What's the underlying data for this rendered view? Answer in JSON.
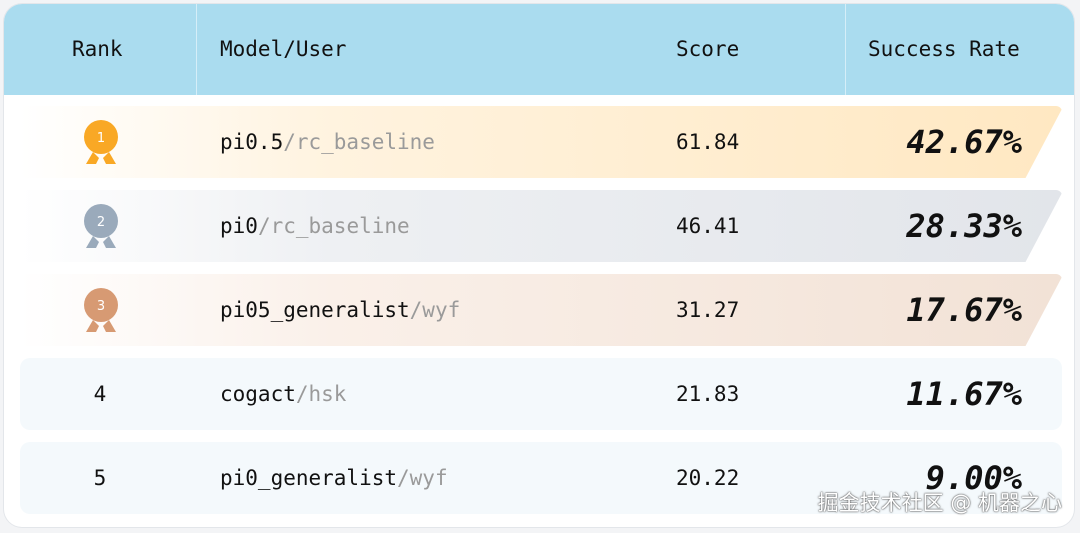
{
  "table": {
    "headers": [
      "Rank",
      "Model/User",
      "Score",
      "Success Rate"
    ],
    "rows": [
      {
        "rank": "1",
        "medal": "gold-medal-icon",
        "model": "pi0.5",
        "user": "/rc_baseline",
        "score": "61.84",
        "success_rate": "42.67%"
      },
      {
        "rank": "2",
        "medal": "silver-medal-icon",
        "model": "pi0",
        "user": "/rc_baseline",
        "score": "46.41",
        "success_rate": "28.33%"
      },
      {
        "rank": "3",
        "medal": "bronze-medal-icon",
        "model": "pi05_generalist",
        "user": "/wyf",
        "score": "31.27",
        "success_rate": "17.67%"
      },
      {
        "rank": "4",
        "model": "cogact",
        "user": "/hsk",
        "score": "21.83",
        "success_rate": "11.67%"
      },
      {
        "rank": "5",
        "model": "pi0_generalist",
        "user": "/wyf",
        "score": "20.22",
        "success_rate": "9.00%"
      }
    ]
  },
  "colors": {
    "header": "#aadcef",
    "gold": "#f9a825",
    "silver": "#9aaabb",
    "bronze": "#d79a73"
  },
  "watermark": "掘金技术社区 @ 机器之心"
}
